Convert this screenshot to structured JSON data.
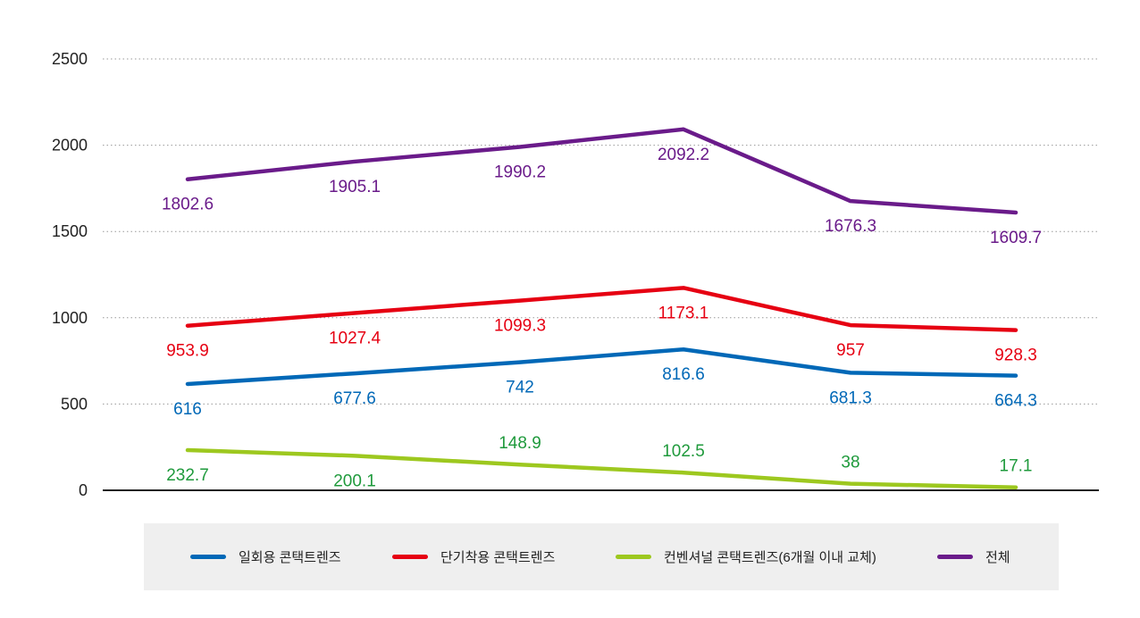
{
  "chart_data": {
    "type": "line",
    "title": "",
    "xlabel": "",
    "ylabel": "",
    "ylim": [
      0,
      2500
    ],
    "yticks": [
      0,
      500,
      1000,
      1500,
      2000,
      2500
    ],
    "grid": "horizontal dotted",
    "legend_position": "bottom",
    "x": [
      1,
      2,
      3,
      4,
      5,
      6
    ],
    "series": [
      {
        "name": "일회용 콘택트렌즈",
        "color": "#0068b7",
        "label_color": "#0068b7",
        "values": [
          616,
          677.6,
          742,
          816.6,
          681.3,
          664.3
        ]
      },
      {
        "name": "단기착용 콘택트렌즈",
        "color": "#e60012",
        "label_color": "#e60012",
        "values": [
          953.9,
          1027.4,
          1099.3,
          1173.1,
          957,
          928.3
        ]
      },
      {
        "name": "컨벤셔널 콘택트렌즈(6개월 이내 교체)",
        "color": "#9dc81f",
        "label_color": "#1f9a3c",
        "values": [
          232.7,
          200.1,
          148.9,
          102.5,
          38,
          17.1
        ]
      },
      {
        "name": "전체",
        "color": "#6a1b8a",
        "label_color": "#6a1b8a",
        "values": [
          1802.6,
          1905.1,
          1990.2,
          2092.2,
          1676.3,
          1609.7
        ]
      }
    ]
  }
}
